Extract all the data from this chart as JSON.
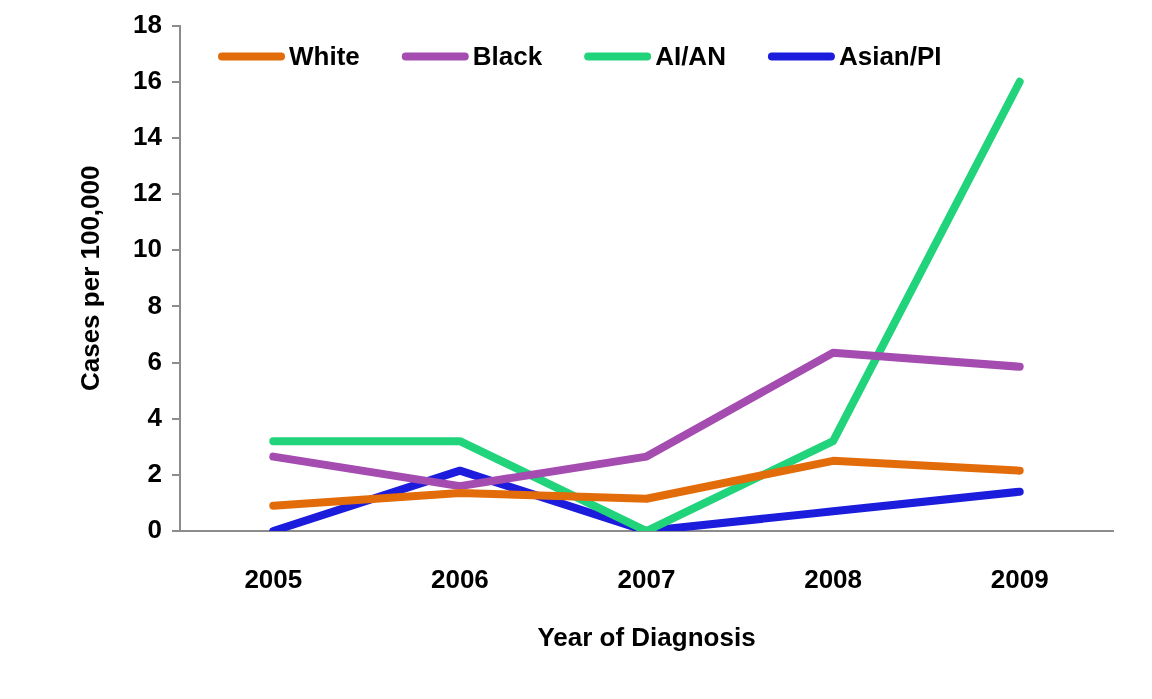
{
  "chart_data": {
    "type": "line",
    "xlabel": "Year of Diagnosis",
    "ylabel": "Cases per 100,000",
    "categories": [
      "2005",
      "2006",
      "2007",
      "2008",
      "2009"
    ],
    "series": [
      {
        "name": "White",
        "color": "#e36c0a",
        "values": [
          0.9,
          1.35,
          1.15,
          2.5,
          2.15
        ]
      },
      {
        "name": "Black",
        "color": "#a44cb0",
        "values": [
          2.65,
          1.6,
          2.65,
          6.35,
          5.85
        ]
      },
      {
        "name": "AI/AN",
        "color": "#21d37a",
        "values": [
          3.2,
          3.2,
          0,
          3.2,
          16
        ]
      },
      {
        "name": "Asian/PI",
        "color": "#1c1cdc",
        "values": [
          0,
          2.15,
          0,
          0.7,
          1.4
        ]
      }
    ],
    "ylim": [
      0,
      18
    ],
    "yticks": [
      0,
      2,
      4,
      6,
      8,
      10,
      12,
      14,
      16,
      18
    ],
    "grid": false,
    "legend": "top",
    "marker": "none",
    "line_style": "solid"
  }
}
